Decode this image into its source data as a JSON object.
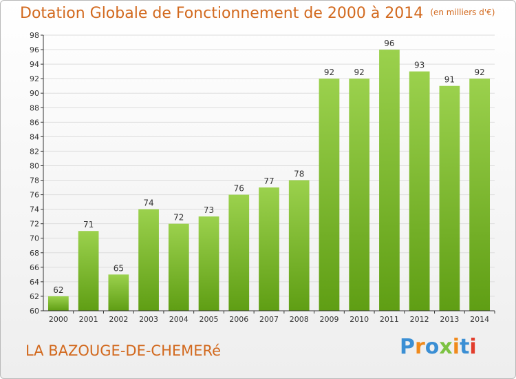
{
  "header": {
    "title": "Dotation Globale de Fonctionnement de 2000 à 2014",
    "unit": "(en milliers d'€)"
  },
  "footer": {
    "commune": "LA BAZOUGE-DE-CHEMERé",
    "logo": "Proxiti"
  },
  "colors": {
    "bar_top": "#9bd14d",
    "bar_bottom": "#5f9e14",
    "title": "#d2691e",
    "axis": "#333333",
    "grid": "#dddddd"
  },
  "chart_data": {
    "type": "bar",
    "title": "Dotation Globale de Fonctionnement de 2000 à 2014",
    "subtitle": "(en milliers d'€)",
    "xlabel": "",
    "ylabel": "",
    "categories": [
      "2000",
      "2001",
      "2002",
      "2003",
      "2004",
      "2005",
      "2006",
      "2007",
      "2008",
      "2009",
      "2010",
      "2011",
      "2012",
      "2013",
      "2014"
    ],
    "values": [
      62,
      71,
      65,
      74,
      72,
      73,
      76,
      77,
      78,
      92,
      92,
      96,
      93,
      91,
      92
    ],
    "ylim": [
      60,
      98
    ],
    "yticks": [
      60,
      62,
      64,
      66,
      68,
      70,
      72,
      74,
      76,
      78,
      80,
      82,
      84,
      86,
      88,
      90,
      92,
      94,
      96,
      98
    ],
    "grid": true,
    "data_labels": true
  }
}
